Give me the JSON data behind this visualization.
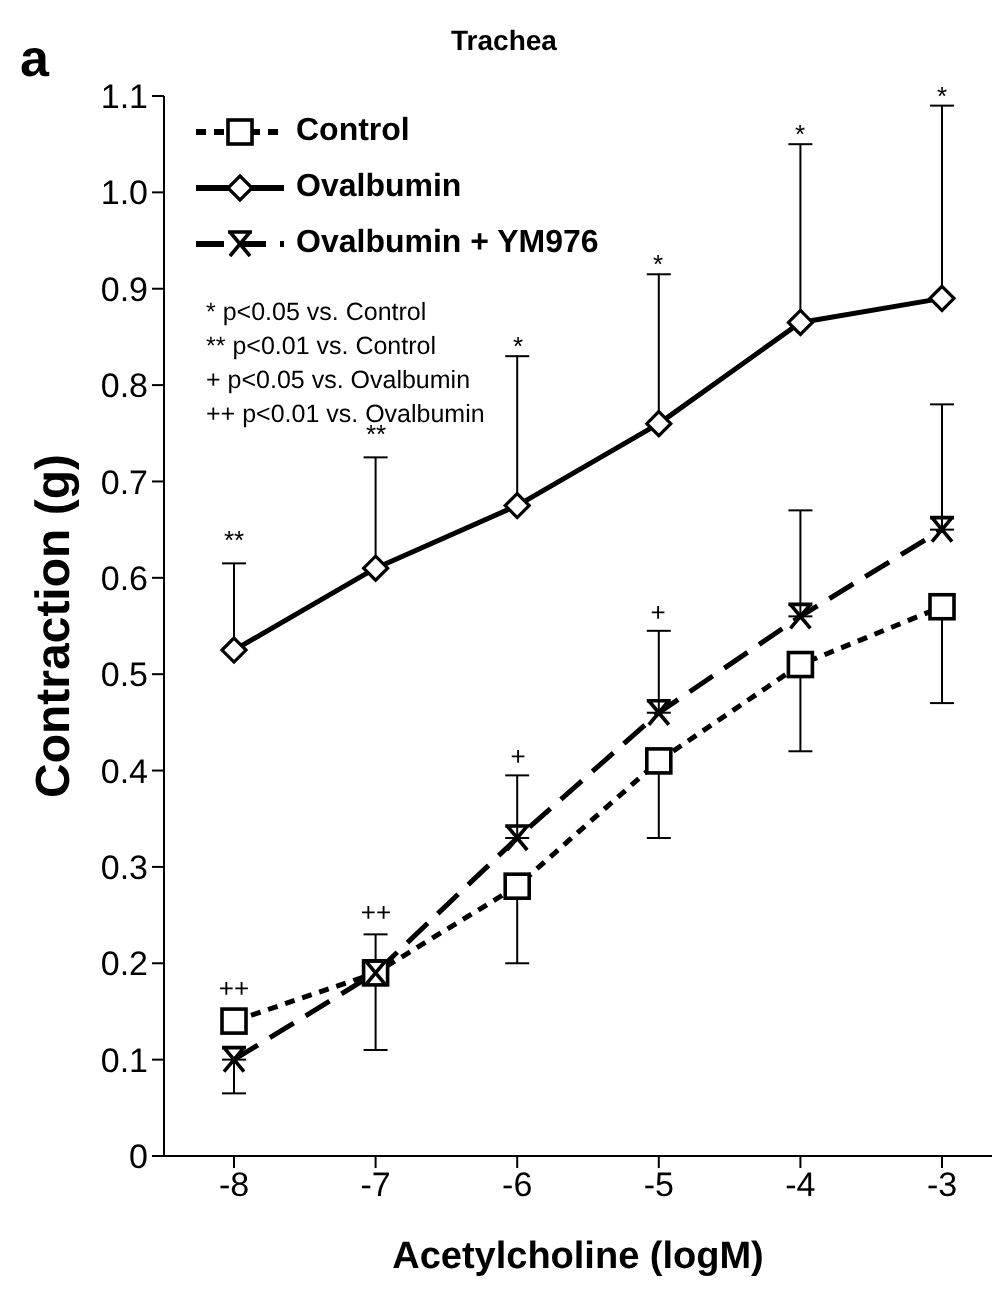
{
  "chart_data": {
    "type": "line",
    "title": "Trachea",
    "xlabel": "Acetylcholine (logM)",
    "ylabel": "Contraction (g)",
    "categories": [
      "-8",
      "-7",
      "-6",
      "-5",
      "-4",
      "-3"
    ],
    "series": [
      {
        "name": "Control",
        "color": "#000000",
        "marker": "square",
        "line_style": "dotted",
        "values": [
          0.14,
          0.19,
          0.28,
          0.41,
          0.51,
          0.57
        ],
        "errors": [
          null,
          [
            0.11,
            0.19
          ],
          [
            0.2,
            0.28
          ],
          [
            0.33,
            0.41
          ],
          [
            0.42,
            0.51
          ],
          [
            0.47,
            0.57
          ]
        ]
      },
      {
        "name": "Ovalbumin",
        "color": "#000000",
        "marker": "diamond",
        "line_style": "solid",
        "values": [
          0.525,
          0.61,
          0.675,
          0.76,
          0.865,
          0.89
        ],
        "errors": [
          [
            0.525,
            0.615
          ],
          [
            0.61,
            0.725
          ],
          [
            0.675,
            0.83
          ],
          [
            0.76,
            0.915
          ],
          [
            0.865,
            1.05
          ],
          [
            0.89,
            1.09
          ]
        ]
      },
      {
        "name": "Ovalbumin + YM976",
        "color": "#000000",
        "marker": "cross",
        "line_style": "dashed",
        "values": [
          0.1,
          0.19,
          0.33,
          0.46,
          0.56,
          0.65
        ],
        "errors": [
          [
            0.065,
            0.1
          ],
          [
            0.19,
            0.23
          ],
          [
            0.33,
            0.395
          ],
          [
            0.46,
            0.545
          ],
          [
            0.56,
            0.67
          ],
          [
            0.65,
            0.78
          ]
        ]
      }
    ],
    "ylim": [
      0,
      1.1
    ],
    "yticks": [
      0,
      {
        "value": 0.1,
        "label": "0.1"
      },
      {
        "value": 0.2,
        "label": "0.2"
      },
      {
        "value": 0.3,
        "label": "0.3"
      },
      {
        "value": 0.4,
        "label": "0.4"
      },
      {
        "value": 0.5,
        "label": "0.5"
      },
      {
        "value": 0.6,
        "label": "0.6"
      },
      {
        "value": 0.7,
        "label": "0.7"
      },
      {
        "value": 0.8,
        "label": "0.8"
      },
      {
        "value": 0.9,
        "label": "0.9"
      },
      {
        "value": 1.0,
        "label": "1.0"
      },
      {
        "value": 1.1,
        "label": "1.1"
      }
    ],
    "grid": false,
    "legend": "top left",
    "annotations": [
      "a",
      "* p<0.05 vs. Control",
      "** p<0.01 vs. Control",
      "+ p<0.05 vs. Ovalbumin",
      "++ p<0.01 vs. Ovalbumin",
      "**",
      "**",
      "*",
      "*",
      "*",
      "*",
      "++",
      "++",
      "+",
      "+"
    ]
  }
}
